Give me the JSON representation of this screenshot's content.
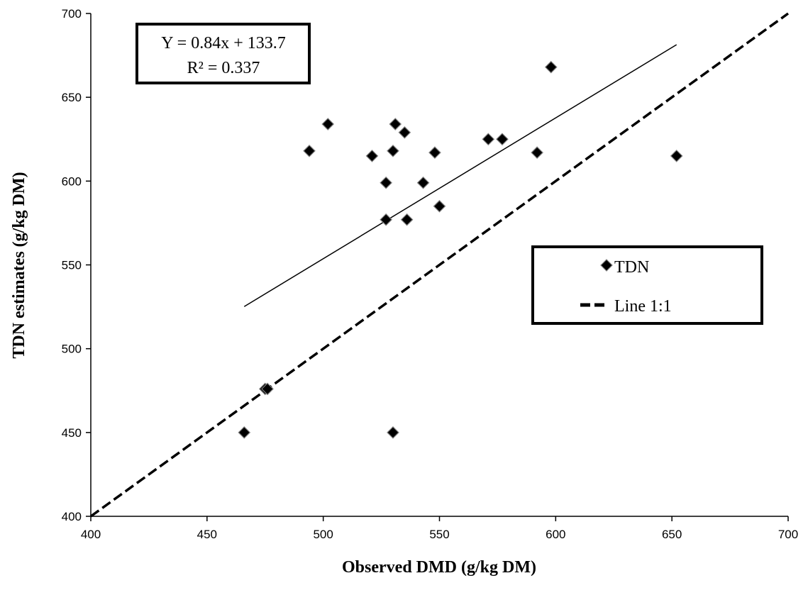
{
  "chart_data": {
    "type": "scatter",
    "xlabel": "Observed DMD (g/kg DM)",
    "ylabel": "TDN estimates (g/kg DM)",
    "xlim": [
      400,
      700
    ],
    "ylim": [
      400,
      700
    ],
    "x_ticks": [
      "400",
      "450",
      "500",
      "550",
      "600",
      "650",
      "700"
    ],
    "y_ticks": [
      "400",
      "450",
      "500",
      "550",
      "600",
      "650",
      "700"
    ],
    "grid": false,
    "legend_position": "right",
    "legend": [
      "TDN",
      "Line 1:1"
    ],
    "equation": "Y = 0.84x + 133.7",
    "r_squared": "R² = 0.337",
    "series": [
      {
        "name": "TDN",
        "marker": "diamond",
        "color": "#000000",
        "points": [
          [
            466,
            450
          ],
          [
            475,
            476
          ],
          [
            476,
            476
          ],
          [
            494,
            618
          ],
          [
            502,
            634
          ],
          [
            521,
            615
          ],
          [
            527,
            577
          ],
          [
            527,
            599
          ],
          [
            530,
            618
          ],
          [
            530,
            450
          ],
          [
            531,
            634
          ],
          [
            535,
            629
          ],
          [
            536,
            577
          ],
          [
            543,
            599
          ],
          [
            548,
            617
          ],
          [
            550,
            585
          ],
          [
            571,
            625
          ],
          [
            577,
            625
          ],
          [
            592,
            617
          ],
          [
            598,
            668
          ],
          [
            652,
            615
          ]
        ]
      },
      {
        "name": "Line 1:1",
        "style": "dashed",
        "color": "#000000",
        "points": [
          [
            400,
            400
          ],
          [
            700,
            700
          ]
        ]
      }
    ],
    "trendline": {
      "slope": 0.84,
      "intercept": 133.7,
      "x_range": [
        466,
        652
      ],
      "style": "solid",
      "color": "#000000"
    }
  }
}
